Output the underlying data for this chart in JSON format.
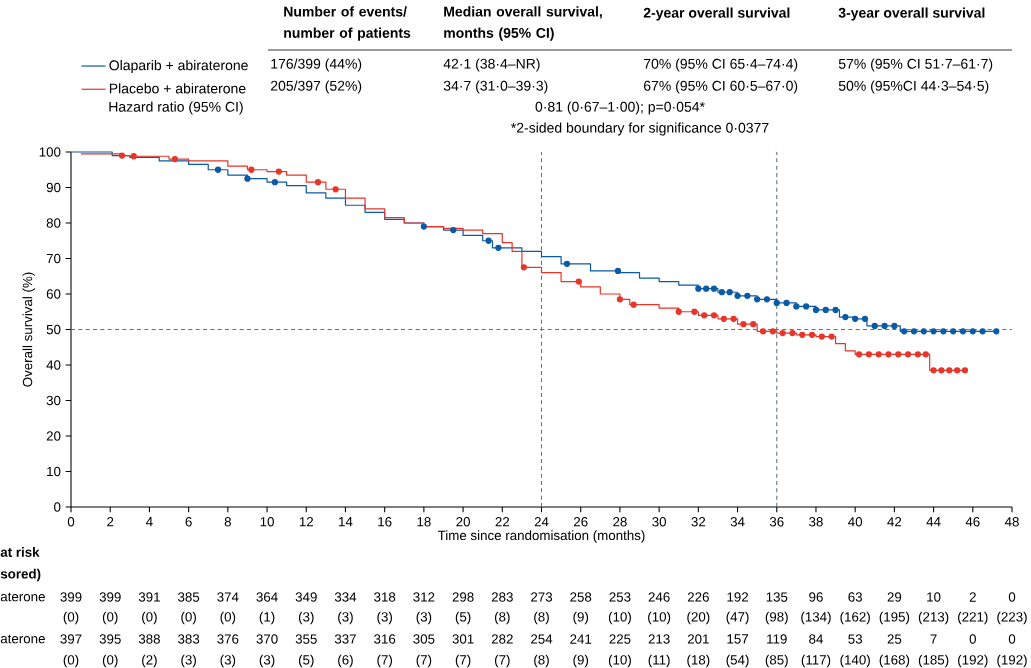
{
  "chart_data": {
    "type": "step",
    "xlabel": "Time since randomisation (months)",
    "ylabel": "Overall survival (%)",
    "xlim": [
      0,
      48
    ],
    "ylim": [
      0,
      100
    ],
    "xticks": [
      0,
      2,
      4,
      6,
      8,
      10,
      12,
      14,
      16,
      18,
      20,
      22,
      24,
      26,
      28,
      30,
      32,
      34,
      36,
      38,
      40,
      42,
      44,
      46,
      48
    ],
    "yticks": [
      0,
      10,
      20,
      30,
      40,
      50,
      60,
      70,
      80,
      90,
      100
    ],
    "legend": "top left",
    "series": [
      {
        "name": "Olaparib + abiraterone",
        "color": "#0b5aa6",
        "x": [
          0,
          2.1,
          3,
          4.5,
          6,
          7,
          8,
          9,
          10,
          11,
          12,
          13,
          14,
          15,
          16,
          17,
          18,
          19,
          20,
          21,
          21.5,
          23,
          24,
          25,
          26.5,
          28,
          29,
          30,
          31,
          32,
          33,
          34,
          35,
          36,
          37,
          38,
          39.2,
          40,
          40.6,
          42.3,
          47.2
        ],
        "values": [
          100,
          99,
          98.5,
          97.5,
          96.5,
          95,
          93.5,
          92.5,
          91.5,
          90.5,
          88.5,
          87,
          85,
          83,
          81,
          80,
          79,
          78,
          76.5,
          75,
          73,
          72,
          70.5,
          68.5,
          66.5,
          66,
          64.5,
          63.5,
          62.5,
          61.5,
          60.5,
          59.5,
          58.5,
          57.5,
          56.5,
          55.5,
          53.5,
          53,
          51,
          49.5,
          49.5
        ]
      },
      {
        "name": "Placebo + abiraterone",
        "color": "#e8352a",
        "x": [
          0.5,
          2.5,
          3,
          5,
          6,
          8,
          9,
          10,
          11,
          12,
          13,
          14,
          15,
          16,
          17,
          18,
          19,
          20,
          21,
          22,
          22.5,
          23,
          24,
          25,
          26,
          27,
          28,
          28.5,
          30,
          31,
          32,
          33,
          34,
          35,
          36,
          37,
          38,
          39,
          39.5,
          40,
          43.8,
          45.6
        ],
        "values": [
          99.5,
          99,
          98.8,
          98,
          97.5,
          96,
          95,
          94.5,
          93.5,
          91.5,
          89.5,
          87,
          84,
          81.5,
          80,
          79,
          78.5,
          78,
          77,
          74.5,
          72,
          67.5,
          66,
          63.5,
          62,
          60,
          58.5,
          57,
          56,
          55,
          54,
          53,
          51.5,
          49.5,
          49,
          48.5,
          48,
          46,
          44,
          43,
          38.5,
          38.5
        ]
      },
      {
        "type": "scatter",
        "marker": "circle",
        "color": "#0b5aa6",
        "x": [
          7.5,
          9.0,
          10.4,
          18.0,
          19.5,
          21.3,
          21.8,
          25.3,
          27.9,
          32.0,
          32.4,
          32.8,
          33.2,
          33.6,
          34.0,
          34.5,
          35.0,
          35.5,
          36.0,
          36.5,
          37.0,
          37.5,
          38.0,
          38.5,
          39.0,
          39.5,
          40.0,
          40.5,
          41.0,
          41.5,
          42.0,
          42.5,
          43.0,
          43.5,
          44.0,
          44.5,
          45.0,
          45.5,
          46.0,
          46.5,
          47.2
        ],
        "values": [
          95,
          92.5,
          91.5,
          79,
          78,
          75,
          73,
          68.5,
          66.5,
          61.5,
          61.5,
          61.5,
          60.5,
          60.5,
          59.5,
          59.5,
          58.5,
          58.5,
          57.5,
          57.5,
          56.5,
          56.5,
          55.5,
          55.5,
          55.5,
          53.5,
          53,
          53,
          51,
          51,
          51,
          49.5,
          49.5,
          49.5,
          49.5,
          49.5,
          49.5,
          49.5,
          49.5,
          49.5,
          49.5
        ]
      },
      {
        "type": "scatter",
        "marker": "circle",
        "color": "#e8352a",
        "x": [
          2.6,
          3.2,
          5.3,
          9.2,
          10.6,
          12.6,
          13.5,
          23.1,
          25.9,
          28.0,
          28.7,
          31.0,
          31.8,
          32.3,
          32.8,
          33.3,
          33.8,
          34.3,
          34.8,
          35.3,
          35.8,
          36.3,
          36.8,
          37.3,
          37.8,
          38.3,
          38.8,
          40.2,
          40.7,
          41.2,
          41.7,
          42.2,
          42.7,
          43.2,
          43.6,
          44.0,
          44.4,
          44.8,
          45.2,
          45.6
        ],
        "values": [
          99,
          98.8,
          98,
          95,
          94.5,
          91.5,
          89.5,
          67.5,
          63.5,
          58.5,
          57,
          55,
          55,
          54,
          54,
          53,
          53,
          51.5,
          51.5,
          49.5,
          49.5,
          49,
          49,
          48.5,
          48.5,
          48,
          48,
          43,
          43,
          43,
          43,
          43,
          43,
          43,
          43,
          38.5,
          38.5,
          38.5,
          38.5,
          38.5
        ]
      }
    ],
    "ref_lines": [
      {
        "axis": "x",
        "value": 24,
        "color": "#5f7480",
        "line_style": "dashed"
      },
      {
        "axis": "x",
        "value": 36,
        "color": "#5f7480",
        "line_style": "dashed"
      },
      {
        "axis": "y",
        "value": 50,
        "color": "#5f7480",
        "line_style": "dashed"
      }
    ],
    "annotations": [
      "Number of events/ number of patients",
      "Median overall survival, months (95% CI)",
      "2-year overall survival",
      "3-year overall survival",
      "Hazard ratio (95% CI)",
      "176/399 (44%)",
      "42·1 (38·4–NR)",
      "70% (95% CI 65·4–74·4)",
      "57% (95% CI 51·7–61·7)",
      "205/397 (52%)",
      "34·7 (31·0–39·3)",
      "67% (95% CI 60·5–67·0)",
      "50% (95%CI 44·3–54·5)",
      "0·81 (0·67–1·00); p=0·054*",
      "*2-sided boundary for significance 0·0377",
      "at risk",
      "sored)",
      "aterone",
      "aterone",
      "399",
      "399",
      "391",
      "385",
      "374",
      "364",
      "349",
      "334",
      "318",
      "312",
      "298",
      "283",
      "273",
      "258",
      "253",
      "246",
      "226",
      "192",
      "135",
      "96",
      "63",
      "29",
      "10",
      "2",
      "0",
      "(0)",
      "(0)",
      "(0)",
      "(0)",
      "(0)",
      "(1)",
      "(3)",
      "(3)",
      "(3)",
      "(3)",
      "(5)",
      "(8)",
      "(8)",
      "(9)",
      "(10)",
      "(10)",
      "(20)",
      "(47)",
      "(98)",
      "(134)",
      "(162)",
      "(195)",
      "(213)",
      "(221)",
      "(223)",
      "397",
      "395",
      "388",
      "383",
      "376",
      "370",
      "355",
      "337",
      "316",
      "305",
      "301",
      "282",
      "254",
      "241",
      "225",
      "213",
      "201",
      "157",
      "119",
      "84",
      "53",
      "25",
      "7",
      "0",
      "0",
      "(0)",
      "(0)",
      "(2)",
      "(3)",
      "(3)",
      "(3)",
      "(5)",
      "(6)",
      "(7)",
      "(7)",
      "(7)",
      "(7)",
      "(8)",
      "(9)",
      "(10)",
      "(11)",
      "(18)",
      "(54)",
      "(85)",
      "(117)",
      "(140)",
      "(168)",
      "(185)",
      "(192)",
      "(192)"
    ]
  }
}
